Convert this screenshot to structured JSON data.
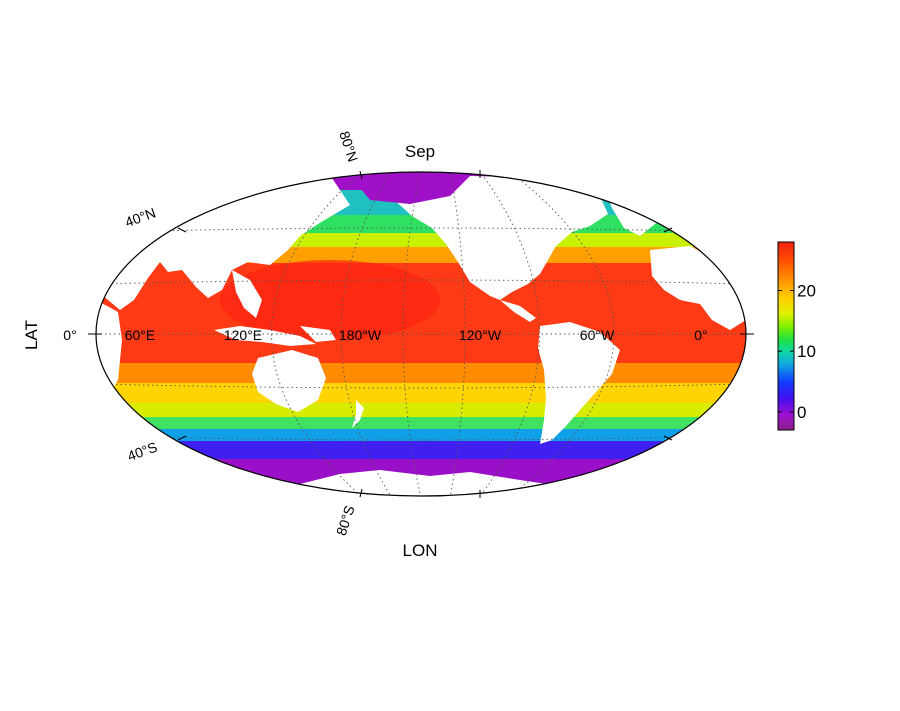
{
  "map": {
    "title": "Sep",
    "xlabel": "LON",
    "ylabel": "LAT",
    "projection": "hammer-aitoff",
    "center_longitude": "180°W",
    "longitude_labels": [
      "60°E",
      "120°E",
      "180°W",
      "120°W",
      "60°W",
      "0°"
    ],
    "latitude_labels": {
      "north_80": "80°N",
      "north_40": "40°N",
      "equator": "0°",
      "south_40": "40°S",
      "south_80": "80°S"
    },
    "gridlines": "dotted",
    "land_color": "#ffffff"
  },
  "colorbar": {
    "ticks": [
      "0",
      "10",
      "20"
    ],
    "tick_values": [
      0,
      10,
      20
    ],
    "range": [
      -3,
      28
    ],
    "colors": [
      "#8a1f8a",
      "#a010d0",
      "#4010f0",
      "#1040ff",
      "#10a8e0",
      "#10d8a0",
      "#20e040",
      "#80f000",
      "#e0f000",
      "#ffd000",
      "#ff9000",
      "#ff5000",
      "#f02010"
    ]
  }
}
